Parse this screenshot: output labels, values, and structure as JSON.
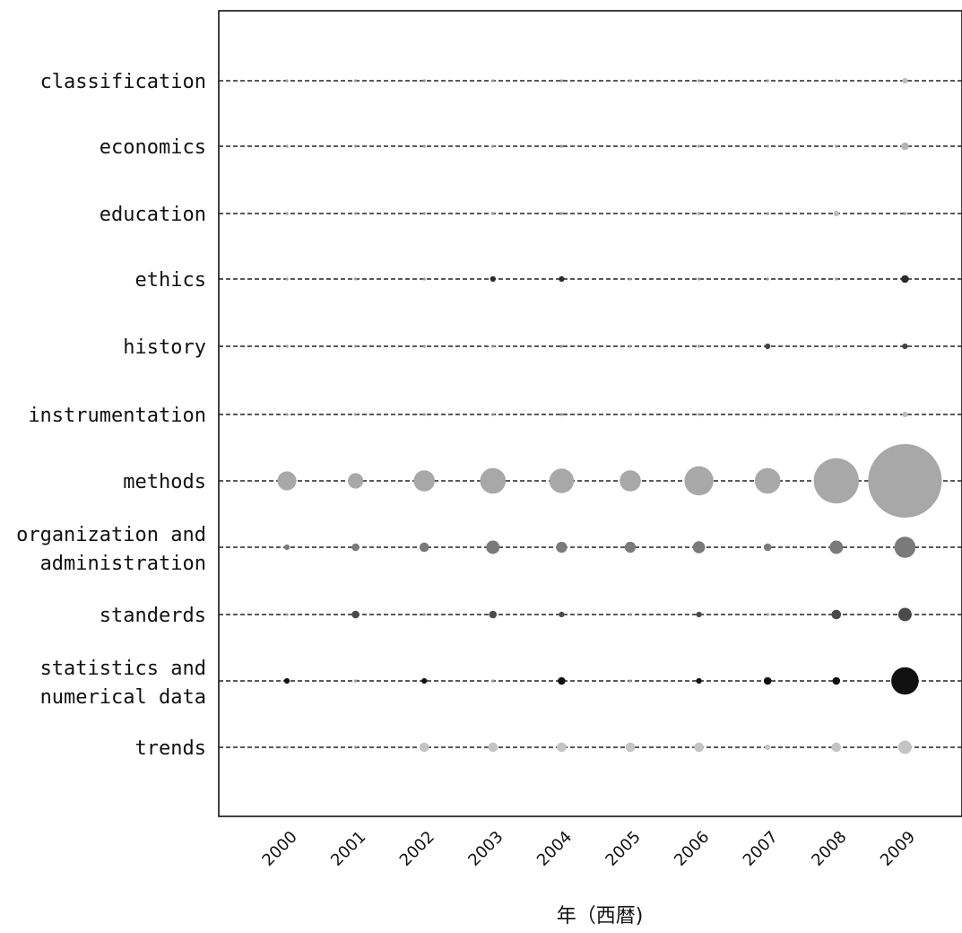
{
  "chart_data": {
    "type": "scatter",
    "subtype": "bubble",
    "title": "",
    "xlabel": "年（西暦)",
    "ylabel": "",
    "x": [
      "2000",
      "2001",
      "2002",
      "2003",
      "2004",
      "2005",
      "2006",
      "2007",
      "2008",
      "2009"
    ],
    "categories": [
      [
        "classification"
      ],
      [
        "economics"
      ],
      [
        "education"
      ],
      [
        "ethics"
      ],
      [
        "history"
      ],
      [
        "instrumentation"
      ],
      [
        "methods"
      ],
      [
        "organization and",
        "administration"
      ],
      [
        "standerds"
      ],
      [
        "statistics and",
        "numerical data"
      ],
      [
        "trends"
      ]
    ],
    "colors": [
      "#bdbdbd",
      "#b5b5b5",
      "#bdbdbd",
      "#2a2a2a",
      "#444444",
      "#bdbdbd",
      "#a8a8a8",
      "#7a7a7a",
      "#4a4a4a",
      "#111111",
      "#c4c4c4"
    ],
    "series": [
      {
        "values": [
          0,
          0,
          0,
          0,
          0,
          0,
          0,
          0,
          0,
          1
        ]
      },
      {
        "values": [
          0,
          0,
          0,
          0,
          0,
          0,
          0,
          0,
          0,
          2
        ]
      },
      {
        "values": [
          0,
          0,
          0,
          0,
          0,
          0,
          0,
          0,
          1,
          0
        ]
      },
      {
        "values": [
          0,
          0,
          0,
          1,
          1,
          0,
          0,
          0,
          0,
          2
        ]
      },
      {
        "values": [
          0,
          0,
          0,
          0,
          0,
          0,
          0,
          1,
          0,
          1
        ]
      },
      {
        "values": [
          0,
          0,
          0,
          0,
          0,
          0,
          0,
          0,
          0,
          1
        ]
      },
      {
        "values": [
          12,
          8,
          15,
          22,
          20,
          15,
          28,
          22,
          68,
          180
        ]
      },
      {
        "values": [
          1,
          2,
          3,
          6,
          4,
          4,
          5,
          2,
          6,
          15
        ]
      },
      {
        "values": [
          0,
          2,
          0,
          2,
          1,
          0,
          1,
          0,
          3,
          6
        ]
      },
      {
        "values": [
          1,
          0,
          1,
          0,
          2,
          0,
          1,
          2,
          2,
          25
        ]
      },
      {
        "values": [
          0,
          0,
          3,
          3,
          3,
          3,
          3,
          1,
          3,
          6
        ]
      }
    ],
    "grid": true,
    "legend": "none"
  }
}
